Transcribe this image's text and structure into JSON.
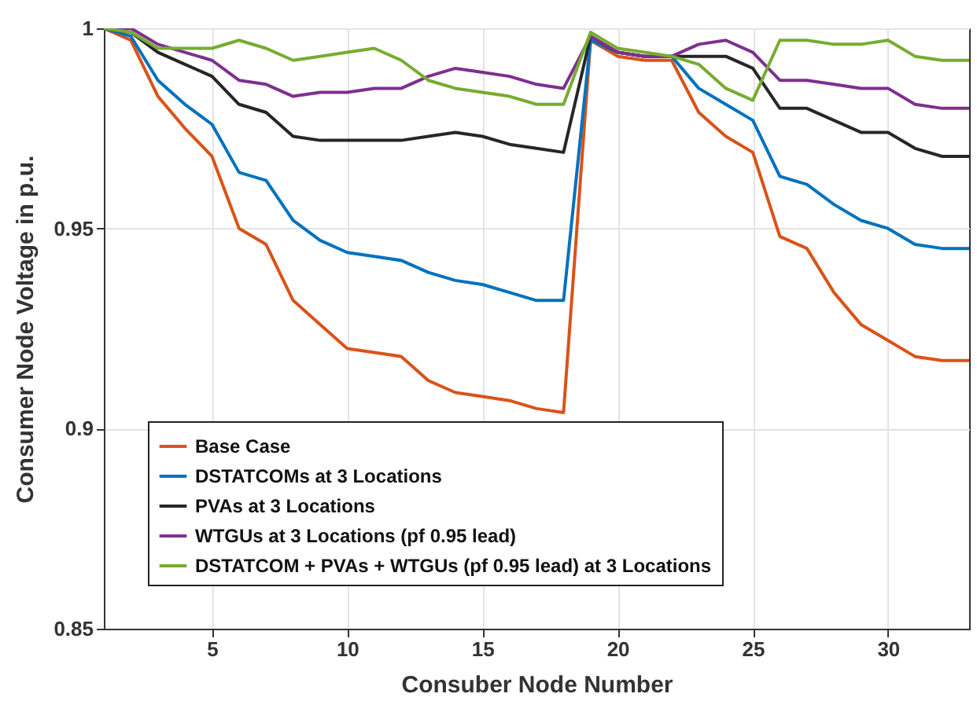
{
  "chart_data": {
    "type": "line",
    "xlabel": "Consuber Node Number",
    "ylabel": "Consumer Node Voltage in p.u.",
    "x": [
      1,
      2,
      3,
      4,
      5,
      6,
      7,
      8,
      9,
      10,
      11,
      12,
      13,
      14,
      15,
      16,
      17,
      18,
      19,
      20,
      21,
      22,
      23,
      24,
      25,
      26,
      27,
      28,
      29,
      30,
      31,
      32,
      33
    ],
    "series": [
      {
        "name": "Base Case",
        "color": "#d95319",
        "values": [
          1,
          0.997,
          0.983,
          0.975,
          0.968,
          0.95,
          0.946,
          0.932,
          0.926,
          0.92,
          0.919,
          0.918,
          0.912,
          0.909,
          0.908,
          0.907,
          0.905,
          0.904,
          0.997,
          0.993,
          0.992,
          0.992,
          0.979,
          0.973,
          0.969,
          0.948,
          0.945,
          0.934,
          0.926,
          0.922,
          0.918,
          0.917,
          0.917
        ]
      },
      {
        "name": "DSTATCOMs at 3 Locations",
        "color": "#0072bd",
        "values": [
          1,
          0.998,
          0.987,
          0.981,
          0.976,
          0.964,
          0.962,
          0.952,
          0.947,
          0.944,
          0.943,
          0.942,
          0.939,
          0.937,
          0.936,
          0.934,
          0.932,
          0.932,
          0.997,
          0.994,
          0.993,
          0.993,
          0.985,
          0.981,
          0.977,
          0.963,
          0.961,
          0.956,
          0.952,
          0.95,
          0.946,
          0.945,
          0.945
        ]
      },
      {
        "name": "PVAs at 3 Locations",
        "color": "#262626",
        "values": [
          1,
          0.999,
          0.994,
          0.991,
          0.988,
          0.981,
          0.979,
          0.973,
          0.972,
          0.972,
          0.972,
          0.972,
          0.973,
          0.974,
          0.973,
          0.971,
          0.97,
          0.969,
          0.998,
          0.994,
          0.993,
          0.993,
          0.993,
          0.993,
          0.99,
          0.98,
          0.98,
          0.977,
          0.974,
          0.974,
          0.97,
          0.968,
          0.968
        ]
      },
      {
        "name": "WTGUs at 3 Locations (pf 0.95 lead)",
        "color": "#7e2f8e",
        "values": [
          1,
          1,
          0.996,
          0.994,
          0.992,
          0.987,
          0.986,
          0.983,
          0.984,
          0.984,
          0.985,
          0.985,
          0.988,
          0.99,
          0.989,
          0.988,
          0.986,
          0.985,
          0.998,
          0.994,
          0.993,
          0.993,
          0.996,
          0.997,
          0.994,
          0.987,
          0.987,
          0.986,
          0.985,
          0.985,
          0.981,
          0.98,
          0.98
        ]
      },
      {
        "name": "DSTATCOM + PVAs + WTGUs (pf 0.95 lead) at 3 Locations",
        "color": "#77ac30",
        "values": [
          1,
          0.999,
          0.995,
          0.995,
          0.995,
          0.997,
          0.995,
          0.992,
          0.993,
          0.994,
          0.995,
          0.992,
          0.987,
          0.985,
          0.984,
          0.983,
          0.981,
          0.981,
          0.999,
          0.995,
          0.994,
          0.993,
          0.991,
          0.985,
          0.982,
          0.997,
          0.997,
          0.996,
          0.996,
          0.997,
          0.993,
          0.992,
          0.992
        ]
      }
    ],
    "xlim": [
      1,
      33
    ],
    "xticks": [
      5,
      10,
      15,
      20,
      25,
      30
    ],
    "ylim": [
      0.85,
      1
    ],
    "yticks": [
      0.85,
      0.9,
      0.95,
      1
    ],
    "grid": true,
    "legend": "bottom left",
    "marker": "none",
    "line_style": "solid"
  }
}
